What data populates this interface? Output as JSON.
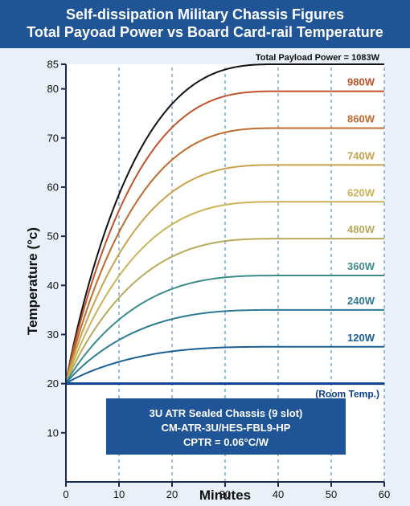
{
  "header": {
    "title_line1": "Self-dissipation Military Chassis Figures",
    "title_line2": "Total Payoad Power vs Board Card-rail Temperature"
  },
  "colors": {
    "header_bg": "#1f5596",
    "page_bg": "#e9f0f8",
    "axis": "#1a2a52",
    "grid": "#3a7bbf",
    "room_line": "#0b3f8c",
    "info_box": "#1f5596"
  },
  "chart_data": {
    "type": "line",
    "title": "Self-dissipation Military Chassis Figures / Total Payoad Power vs Board Card-rail Temperature",
    "xlabel": "Minutes",
    "ylabel": "Temperature (°c)",
    "xlim": [
      0,
      60
    ],
    "ylim": [
      0,
      85
    ],
    "x_ticks": [
      0,
      10,
      20,
      30,
      40,
      50,
      60
    ],
    "y_ticks": [
      10,
      20,
      30,
      40,
      50,
      60,
      70,
      80,
      85
    ],
    "grid": "vertical dashed at x = 10, 20, 30, 40, 50, 60",
    "series": [
      {
        "name": "Total Payload Power = 1083W",
        "color": "#111111",
        "steady_state": 85,
        "start": 20,
        "plateau_minute": 40
      },
      {
        "name": "980W",
        "color": "#c0522a",
        "steady_state": 79.5,
        "start": 20,
        "plateau_minute": 40
      },
      {
        "name": "860W",
        "color": "#c06a2c",
        "steady_state": 72,
        "start": 20,
        "plateau_minute": 40
      },
      {
        "name": "740W",
        "color": "#c9a24c",
        "steady_state": 64.5,
        "start": 20,
        "plateau_minute": 40
      },
      {
        "name": "620W",
        "color": "#c9b356",
        "steady_state": 57,
        "start": 20,
        "plateau_minute": 40
      },
      {
        "name": "480W",
        "color": "#b7ab5a",
        "steady_state": 49.5,
        "start": 20,
        "plateau_minute": 40
      },
      {
        "name": "360W",
        "color": "#3c8c8c",
        "steady_state": 42,
        "start": 20,
        "plateau_minute": 40
      },
      {
        "name": "240W",
        "color": "#2c7a94",
        "steady_state": 35,
        "start": 20,
        "plateau_minute": 40
      },
      {
        "name": "120W",
        "color": "#1a5e96",
        "steady_state": 27.5,
        "start": 20,
        "plateau_minute": 40
      }
    ],
    "reference_line": {
      "label": "(Room Temp.)",
      "value": 20
    },
    "annotation": {
      "line1": "3U ATR Sealed Chassis (9 slot)",
      "line2": "CM-ATR-3U/HES-FBL9-HP",
      "line3": "CPTR = 0.06°C/W"
    }
  }
}
